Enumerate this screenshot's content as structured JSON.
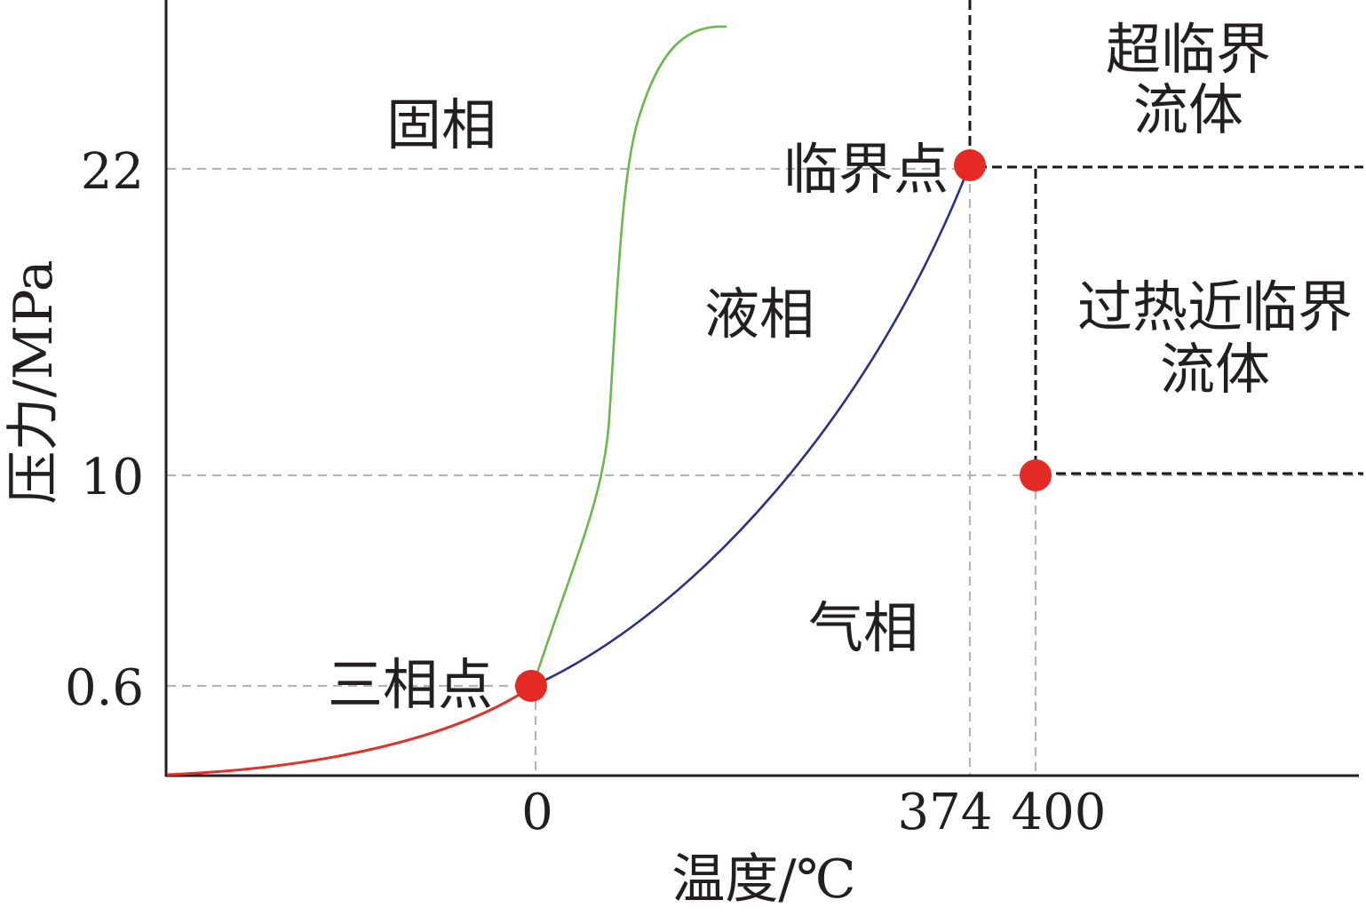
{
  "axes": {
    "xlabel": "温度/℃",
    "ylabel": "压力/MPa",
    "xticks": [
      "0",
      "374",
      "400"
    ],
    "yticks": [
      "22",
      "10",
      "0.6"
    ]
  },
  "regions": {
    "solid": "固相",
    "liquid": "液相",
    "gas": "气相",
    "supercritical_line1": "超临界",
    "supercritical_line2": "流体",
    "near_critical_line1": "过热近临界",
    "near_critical_line2": "流体"
  },
  "points": {
    "triple": "三相点",
    "critical": "临界点"
  },
  "colors": {
    "sublimation_curve": "#e0312b",
    "melting_curve": "#6ab84b",
    "vaporization_curve": "#2e2f8a",
    "point_marker": "#e52a25",
    "guide_line": "#b5b5b5",
    "boundary_line": "#1a1a1a",
    "axis": "#231f20"
  },
  "chart_data": {
    "type": "phase-diagram",
    "xlabel": "温度/℃",
    "ylabel": "压力/MPa",
    "x_ticks": [
      0,
      374,
      400
    ],
    "y_ticks": [
      0.6,
      10,
      22
    ],
    "marked_points": [
      {
        "name": "三相点",
        "x": 0,
        "y": 0.6
      },
      {
        "name": "临界点",
        "x": 374,
        "y": 22
      },
      {
        "name": "",
        "x": 400,
        "y": 10
      }
    ]
  }
}
